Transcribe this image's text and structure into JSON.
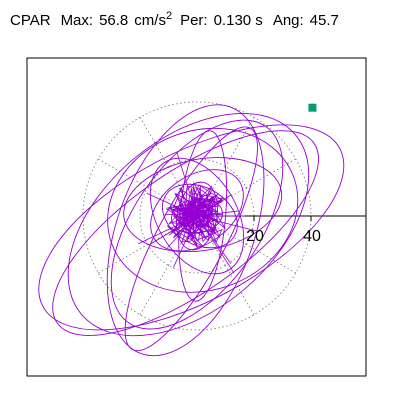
{
  "header": {
    "component": "CPAR",
    "max_label": "Max:",
    "max_value": "56.8",
    "max_unit": "cm/s",
    "max_unit_exp": "2",
    "per_label": "Per:",
    "per_value": "0.130 s",
    "ang_label": "Ang:",
    "ang_value": "45.7"
  },
  "colors": {
    "trace": "#9400d3",
    "peak_marker": "#009e73",
    "grid": "#808080",
    "axis": "#000000"
  },
  "chart_data": {
    "type": "polar-hodogram",
    "title": "",
    "xlabel": "",
    "ylabel": "",
    "grid": true,
    "grid_style": "dotted",
    "xlim": [
      -60,
      60
    ],
    "ylim": [
      -60,
      60
    ],
    "radial_ticks": [
      20,
      40
    ],
    "radial_tick_labels": [
      "20",
      "40"
    ],
    "peak": {
      "x": 40.5,
      "y": 38.0,
      "value": 56.8,
      "angle_deg": 45.7
    },
    "ellipses": [
      {
        "a": 59,
        "b": 26,
        "rot": 28,
        "cx": -2,
        "cy": -4
      },
      {
        "a": 55,
        "b": 21,
        "rot": 35,
        "cx": -4,
        "cy": -6
      },
      {
        "a": 49,
        "b": 30,
        "rot": 40,
        "cx": -3,
        "cy": -3
      },
      {
        "a": 46,
        "b": 24,
        "rot": 70,
        "cx": -4,
        "cy": -5
      },
      {
        "a": 42,
        "b": 22,
        "rot": 55,
        "cx": 0,
        "cy": -3
      },
      {
        "a": 34,
        "b": 28,
        "rot": 20,
        "cx": 2,
        "cy": 2
      },
      {
        "a": 44,
        "b": 12,
        "rot": 62,
        "cx": -2,
        "cy": -8
      },
      {
        "a": 28,
        "b": 16,
        "rot": 10,
        "cx": 2,
        "cy": 4
      },
      {
        "a": 30,
        "b": 8,
        "rot": 85,
        "cx": 2,
        "cy": 0
      },
      {
        "a": 22,
        "b": 14,
        "rot": 120,
        "cx": 0,
        "cy": 0
      },
      {
        "a": 18,
        "b": 12,
        "rot": 35,
        "cx": 0,
        "cy": 2
      },
      {
        "a": 14,
        "b": 10,
        "rot": 150,
        "cx": 1,
        "cy": 0
      },
      {
        "a": 12,
        "b": 7,
        "rot": 80,
        "cx": 0,
        "cy": 0
      },
      {
        "a": 9,
        "b": 6,
        "rot": 10,
        "cx": 0,
        "cy": 0
      },
      {
        "a": 7,
        "b": 4,
        "rot": 50,
        "cx": 0,
        "cy": 0
      }
    ]
  }
}
